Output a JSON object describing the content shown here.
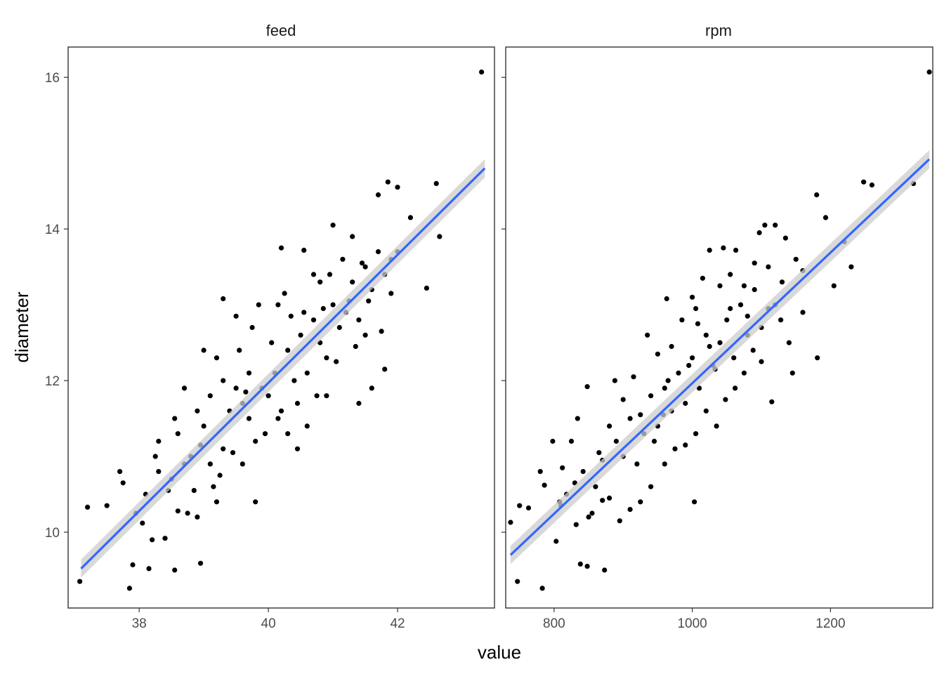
{
  "chart_data": {
    "type": "scatter",
    "xlabel": "value",
    "ylabel": "diameter",
    "ylim": [
      9.0,
      16.4
    ],
    "yticks": [
      10,
      12,
      14,
      16
    ],
    "grid": false,
    "colors": {
      "points": "#000000",
      "fit_line": "#3366FF",
      "ribbon": "#cccccc",
      "frame": "#333333"
    },
    "panels": [
      {
        "strip": "feed",
        "xlim": [
          36.9,
          43.5
        ],
        "xticks": [
          38,
          40,
          42
        ],
        "fit": {
          "x": [
            37.1,
            43.35
          ],
          "y": [
            9.52,
            14.8
          ],
          "ci_halfwidth": 0.12
        },
        "points": [
          [
            37.08,
            9.35
          ],
          [
            37.2,
            10.33
          ],
          [
            37.9,
            9.57
          ],
          [
            37.85,
            9.26
          ],
          [
            38.15,
            9.52
          ],
          [
            38.55,
            9.5
          ],
          [
            38.95,
            9.59
          ],
          [
            37.5,
            10.35
          ],
          [
            37.7,
            10.8
          ],
          [
            37.95,
            10.25
          ],
          [
            38.05,
            10.12
          ],
          [
            38.2,
            9.9
          ],
          [
            38.4,
            9.92
          ],
          [
            38.6,
            10.28
          ],
          [
            38.75,
            10.25
          ],
          [
            38.9,
            10.2
          ],
          [
            39.8,
            10.4
          ],
          [
            39.2,
            10.4
          ],
          [
            38.3,
            10.8
          ],
          [
            38.5,
            10.7
          ],
          [
            38.7,
            10.9
          ],
          [
            38.6,
            11.3
          ],
          [
            38.8,
            11.0
          ],
          [
            38.9,
            11.6
          ],
          [
            39.0,
            11.4
          ],
          [
            39.1,
            10.9
          ],
          [
            39.3,
            11.1
          ],
          [
            39.4,
            11.6
          ],
          [
            39.5,
            11.9
          ],
          [
            39.6,
            11.7
          ],
          [
            39.7,
            11.5
          ],
          [
            39.8,
            11.2
          ],
          [
            39.9,
            11.9
          ],
          [
            40.0,
            11.8
          ],
          [
            40.1,
            12.1
          ],
          [
            40.2,
            11.6
          ],
          [
            40.3,
            12.4
          ],
          [
            40.4,
            12.0
          ],
          [
            40.5,
            12.6
          ],
          [
            40.6,
            12.1
          ],
          [
            40.7,
            12.8
          ],
          [
            40.8,
            12.5
          ],
          [
            40.9,
            12.3
          ],
          [
            41.0,
            13.0
          ],
          [
            41.1,
            12.7
          ],
          [
            41.2,
            12.9
          ],
          [
            41.3,
            13.3
          ],
          [
            41.4,
            12.8
          ],
          [
            41.5,
            13.5
          ],
          [
            41.6,
            13.2
          ],
          [
            41.7,
            13.7
          ],
          [
            41.8,
            13.4
          ],
          [
            41.9,
            13.6
          ],
          [
            42.2,
            14.15
          ],
          [
            42.45,
            13.22
          ],
          [
            42.6,
            14.6
          ],
          [
            42.65,
            13.9
          ],
          [
            42.0,
            14.55
          ],
          [
            41.85,
            14.62
          ],
          [
            41.7,
            14.45
          ],
          [
            40.2,
            13.75
          ],
          [
            40.55,
            13.72
          ],
          [
            41.3,
            13.9
          ],
          [
            41.0,
            14.05
          ],
          [
            43.3,
            16.07
          ],
          [
            39.5,
            12.85
          ],
          [
            39.3,
            13.08
          ],
          [
            40.15,
            13.0
          ],
          [
            40.7,
            13.4
          ],
          [
            39.0,
            12.4
          ],
          [
            39.2,
            12.3
          ],
          [
            38.7,
            11.9
          ],
          [
            38.55,
            11.5
          ],
          [
            38.25,
            11.0
          ],
          [
            38.1,
            10.5
          ],
          [
            37.75,
            10.65
          ],
          [
            39.1,
            11.8
          ],
          [
            39.3,
            12.0
          ],
          [
            39.55,
            12.4
          ],
          [
            39.7,
            12.1
          ],
          [
            40.05,
            12.5
          ],
          [
            40.3,
            11.3
          ],
          [
            40.45,
            11.1
          ],
          [
            40.6,
            11.4
          ],
          [
            40.9,
            11.8
          ],
          [
            41.4,
            11.7
          ],
          [
            41.6,
            11.9
          ],
          [
            41.8,
            12.15
          ],
          [
            41.5,
            12.6
          ],
          [
            41.75,
            12.65
          ],
          [
            40.8,
            13.3
          ],
          [
            40.95,
            13.4
          ],
          [
            41.15,
            13.6
          ],
          [
            41.25,
            13.05
          ],
          [
            40.35,
            12.85
          ],
          [
            40.25,
            13.15
          ],
          [
            39.75,
            12.7
          ],
          [
            39.85,
            13.0
          ],
          [
            38.45,
            10.55
          ],
          [
            38.85,
            10.55
          ],
          [
            39.15,
            10.6
          ],
          [
            39.45,
            11.05
          ],
          [
            39.95,
            11.3
          ],
          [
            40.15,
            11.5
          ],
          [
            40.45,
            11.7
          ],
          [
            40.75,
            11.8
          ],
          [
            41.05,
            12.25
          ],
          [
            41.35,
            12.45
          ],
          [
            38.3,
            11.2
          ],
          [
            38.95,
            11.15
          ],
          [
            39.65,
            11.85
          ],
          [
            39.25,
            10.75
          ],
          [
            39.6,
            10.9
          ],
          [
            40.55,
            12.9
          ],
          [
            40.85,
            12.95
          ],
          [
            41.45,
            13.55
          ],
          [
            41.55,
            13.05
          ],
          [
            41.9,
            13.15
          ],
          [
            42.0,
            13.7
          ]
        ]
      },
      {
        "strip": "rpm",
        "xlim": [
          730,
          1348
        ],
        "xticks": [
          800,
          1000,
          1200
        ],
        "fit": {
          "x": [
            737,
            1343
          ],
          "y": [
            9.7,
            14.92
          ],
          "ci_halfwidth": 0.12
        },
        "points": [
          [
            737,
            10.13
          ],
          [
            747,
            9.35
          ],
          [
            783,
            9.26
          ],
          [
            803,
            9.88
          ],
          [
            838,
            9.58
          ],
          [
            848,
            9.55
          ],
          [
            873,
            9.5
          ],
          [
            1003,
            10.4
          ],
          [
            750,
            10.35
          ],
          [
            763,
            10.32
          ],
          [
            780,
            10.8
          ],
          [
            786,
            10.62
          ],
          [
            810,
            10.35
          ],
          [
            818,
            10.5
          ],
          [
            830,
            10.65
          ],
          [
            842,
            10.8
          ],
          [
            850,
            10.2
          ],
          [
            860,
            10.6
          ],
          [
            870,
            10.95
          ],
          [
            880,
            10.45
          ],
          [
            890,
            11.2
          ],
          [
            900,
            11.0
          ],
          [
            910,
            11.5
          ],
          [
            920,
            10.9
          ],
          [
            930,
            11.3
          ],
          [
            940,
            11.8
          ],
          [
            950,
            11.4
          ],
          [
            960,
            11.9
          ],
          [
            970,
            11.6
          ],
          [
            980,
            12.1
          ],
          [
            990,
            11.7
          ],
          [
            1000,
            12.3
          ],
          [
            1010,
            11.9
          ],
          [
            1020,
            12.6
          ],
          [
            1030,
            12.2
          ],
          [
            1040,
            12.5
          ],
          [
            1050,
            12.8
          ],
          [
            1060,
            12.3
          ],
          [
            1070,
            13.0
          ],
          [
            1080,
            12.6
          ],
          [
            1090,
            13.2
          ],
          [
            1100,
            12.7
          ],
          [
            1110,
            13.5
          ],
          [
            1120,
            13.0
          ],
          [
            1130,
            13.3
          ],
          [
            1140,
            12.5
          ],
          [
            1150,
            13.6
          ],
          [
            1160,
            12.9
          ],
          [
            1181,
            12.3
          ],
          [
            1115,
            11.72
          ],
          [
            1180,
            14.45
          ],
          [
            1193,
            14.15
          ],
          [
            1220,
            13.83
          ],
          [
            1230,
            13.5
          ],
          [
            1248,
            14.62
          ],
          [
            1260,
            14.58
          ],
          [
            1320,
            14.6
          ],
          [
            1343,
            16.07
          ],
          [
            1105,
            14.05
          ],
          [
            1120,
            14.05
          ],
          [
            1135,
            13.88
          ],
          [
            1097,
            13.95
          ],
          [
            1045,
            13.75
          ],
          [
            1025,
            13.72
          ],
          [
            1063,
            13.72
          ],
          [
            963,
            13.08
          ],
          [
            888,
            12.0
          ],
          [
            848,
            11.92
          ],
          [
            834,
            11.5
          ],
          [
            825,
            11.2
          ],
          [
            798,
            11.2
          ],
          [
            812,
            10.85
          ],
          [
            808,
            10.4
          ],
          [
            832,
            10.1
          ],
          [
            855,
            10.25
          ],
          [
            870,
            10.42
          ],
          [
            895,
            10.15
          ],
          [
            910,
            10.3
          ],
          [
            925,
            10.4
          ],
          [
            940,
            10.6
          ],
          [
            960,
            10.9
          ],
          [
            975,
            11.1
          ],
          [
            990,
            11.15
          ],
          [
            1005,
            11.3
          ],
          [
            1020,
            11.6
          ],
          [
            1035,
            11.4
          ],
          [
            1048,
            11.75
          ],
          [
            1062,
            11.9
          ],
          [
            1075,
            12.1
          ],
          [
            1088,
            12.4
          ],
          [
            1100,
            12.25
          ],
          [
            1128,
            12.8
          ],
          [
            1145,
            12.1
          ],
          [
            1000,
            13.1
          ],
          [
            1015,
            13.35
          ],
          [
            1040,
            13.25
          ],
          [
            1055,
            13.4
          ],
          [
            1075,
            13.25
          ],
          [
            1090,
            13.55
          ],
          [
            950,
            12.35
          ],
          [
            935,
            12.6
          ],
          [
            970,
            12.45
          ],
          [
            985,
            12.8
          ],
          [
            1005,
            12.95
          ],
          [
            915,
            12.05
          ],
          [
            900,
            11.75
          ],
          [
            880,
            11.4
          ],
          [
            865,
            11.05
          ],
          [
            945,
            11.2
          ],
          [
            925,
            11.55
          ],
          [
            965,
            12.0
          ],
          [
            995,
            12.2
          ],
          [
            1025,
            12.45
          ],
          [
            1055,
            12.95
          ],
          [
            1080,
            12.85
          ],
          [
            1110,
            12.95
          ],
          [
            1160,
            13.45
          ],
          [
            1205,
            13.25
          ],
          [
            1008,
            12.75
          ],
          [
            1033,
            12.15
          ],
          [
            958,
            11.55
          ]
        ]
      }
    ]
  }
}
